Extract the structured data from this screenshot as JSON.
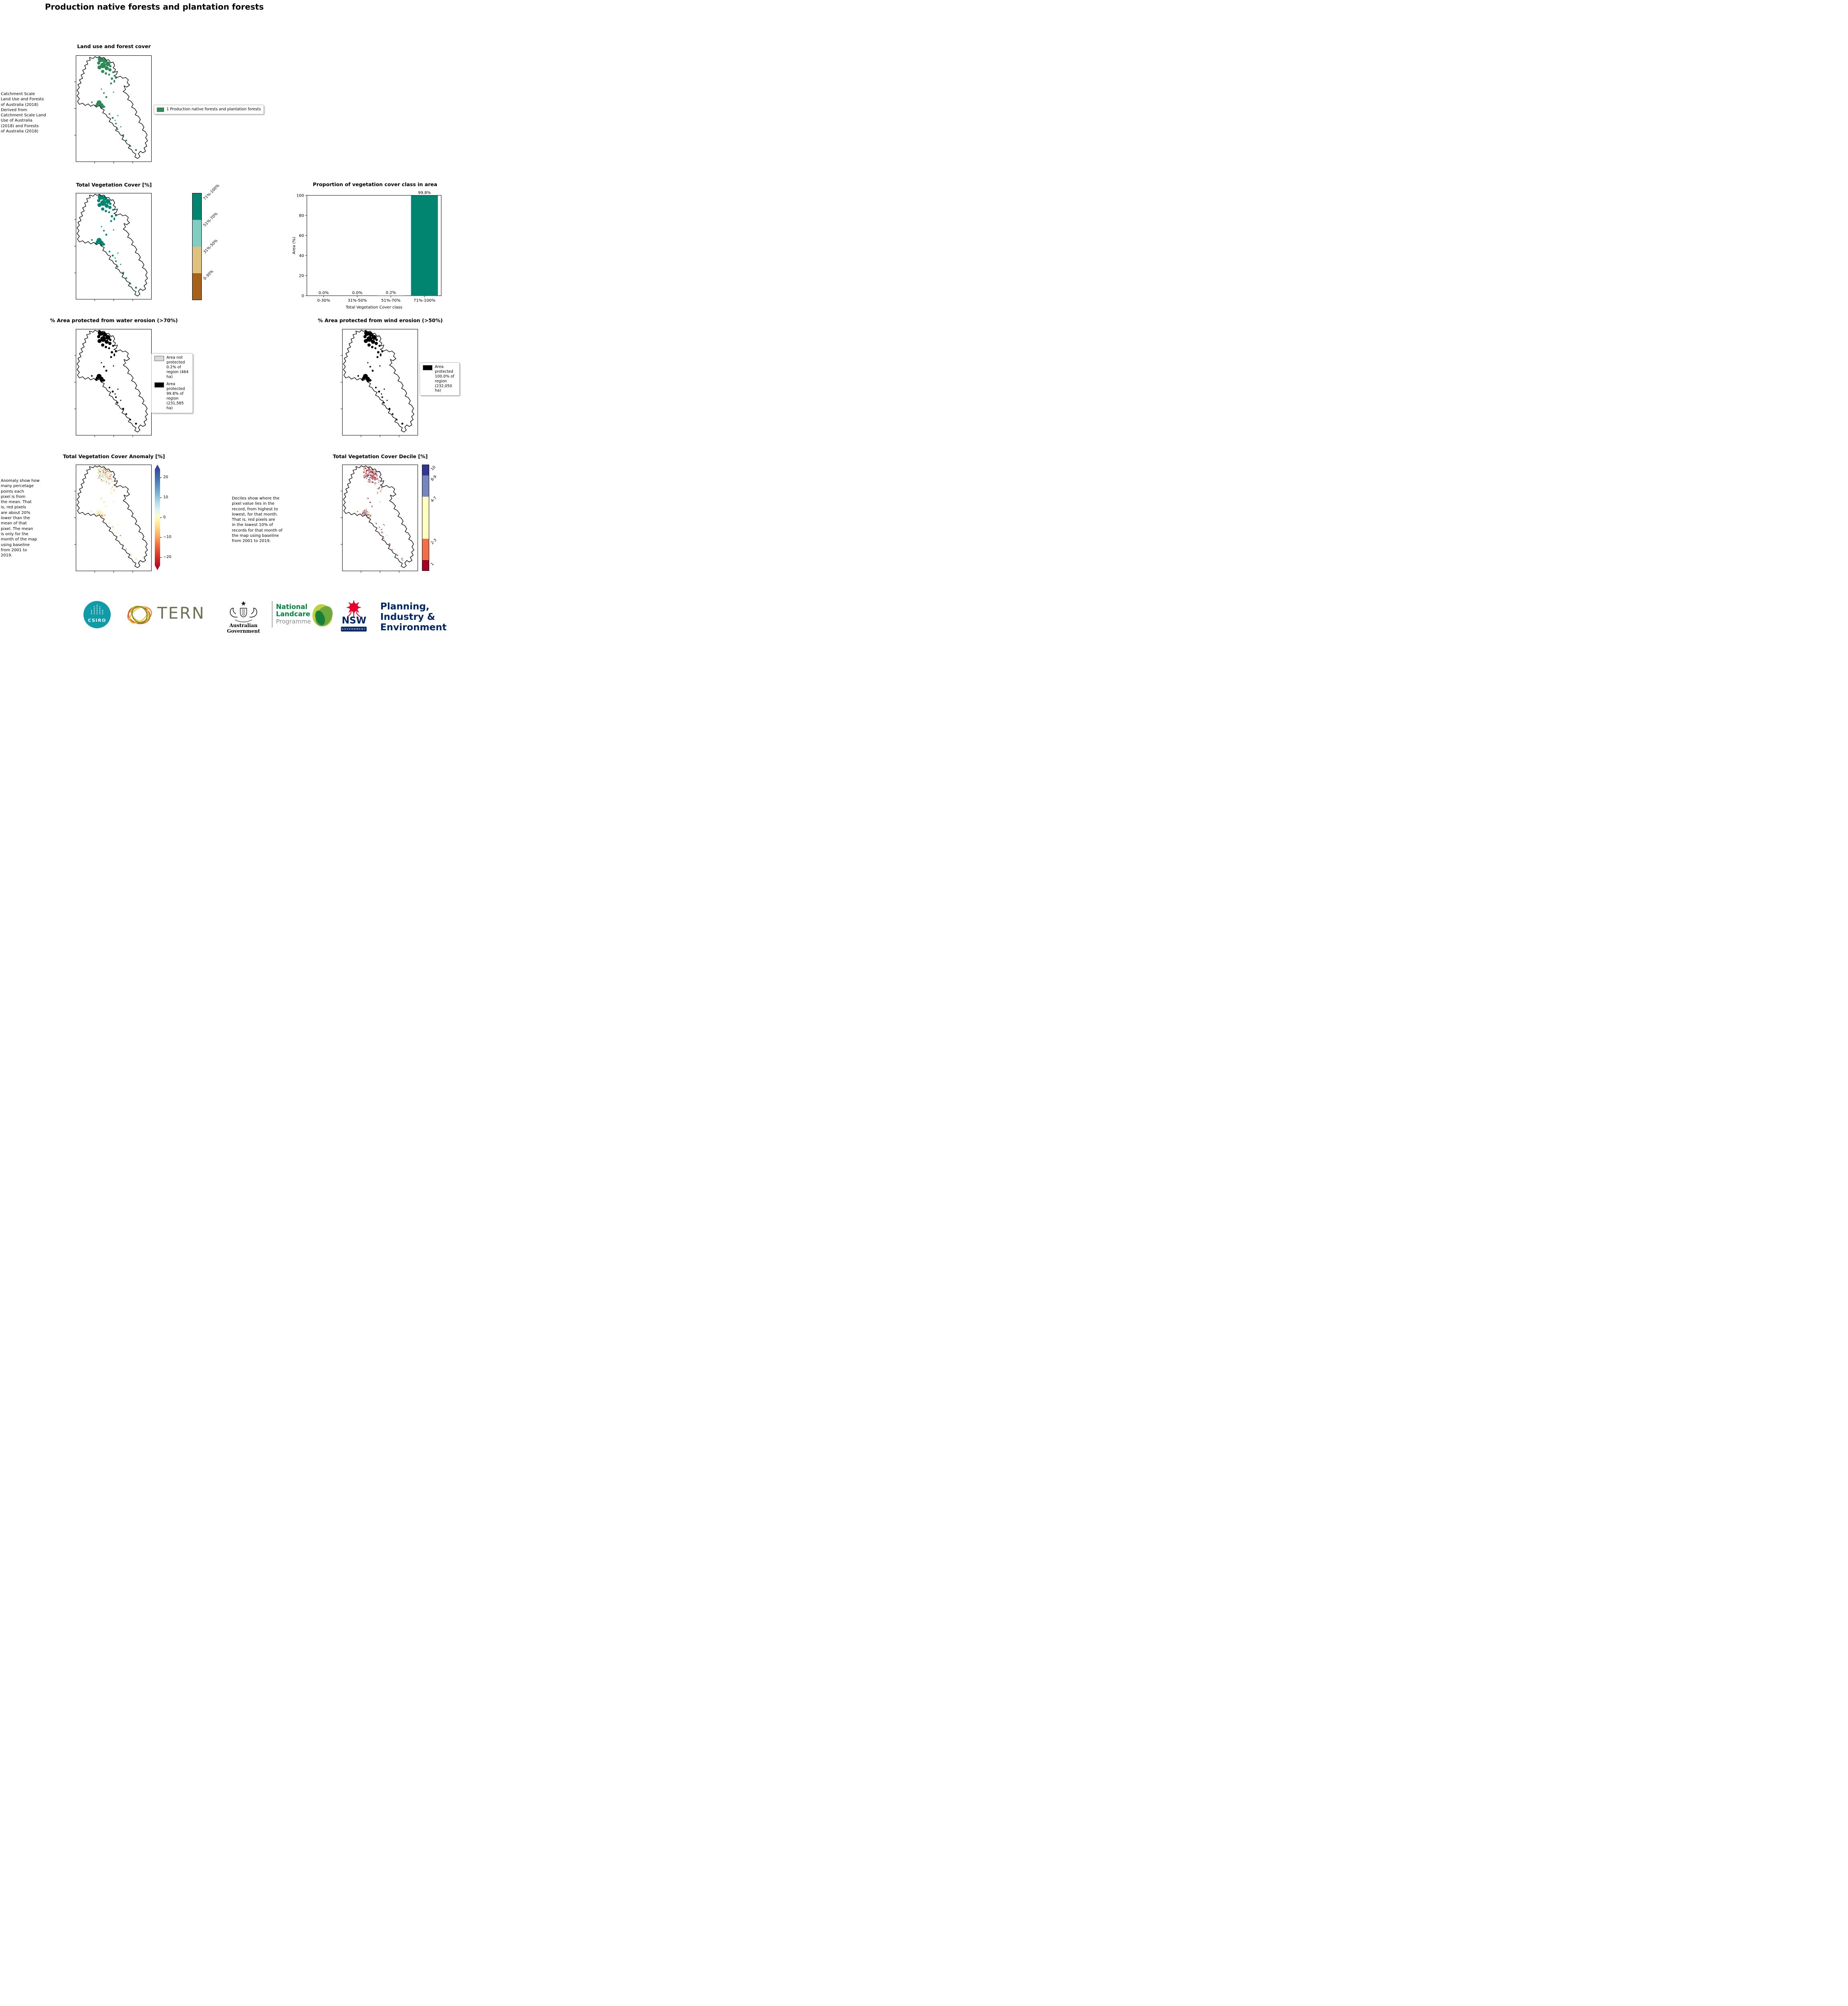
{
  "page": {
    "title": "Production native forests and plantation forests"
  },
  "colors": {
    "forest_green": "#2e8b57",
    "accent_teal": "#018571",
    "protected_black": "#000000",
    "not_protected_gray": "#d9d9d9",
    "csiro_teal": "#0f9ba8",
    "landcare_green": "#00843d",
    "nsw_navy": "#002664",
    "nsw_red": "#e4002b"
  },
  "panels": {
    "landuse": {
      "title": "Land use and forest cover",
      "side_note": " Catchment Scale\nLand Use and Forests\nof Australia (2018)\nDerived from\nCatchment Scale Land\nUse of Australia\n(2018) and Forests\nof Australia (2018)",
      "legend_items": [
        {
          "label": "1 Production native forests and plantation forests",
          "color": "#2e8b57"
        }
      ]
    },
    "tvc": {
      "title": "Total Vegetation Cover [%]",
      "colorbar_segments": [
        {
          "label": "71%-100%",
          "color": "#018571"
        },
        {
          "label": "51%-70%",
          "color": "#80cdc1"
        },
        {
          "label": "31%-50%",
          "color": "#dfc27d"
        },
        {
          "label": "0-30%",
          "color": "#a6611a"
        }
      ]
    },
    "water": {
      "title": "% Area protected from water erosion (>70%)",
      "legend_items": [
        {
          "label": "Area not protected 0.2% of region (464 ha)",
          "color": "#d9d9d9"
        },
        {
          "label": "Area protected 99.8% of region (231,585 ha)",
          "color": "#000000"
        }
      ]
    },
    "wind": {
      "title": "% Area protected from wind erosion (>50%)",
      "legend_items": [
        {
          "label": "Area protected 100.0% of region (232,050 ha)",
          "color": "#000000"
        }
      ]
    },
    "anomaly": {
      "title": "Total Vegetation Cover Anomaly [%]",
      "side_note": "Anomaly show how\nmany percetage\npoints each\npixel is from\nthe mean. That\nis, red pixels\nare about 20%\nlower than the\nmean of that\npixel. The mean\nis only for the\nmonth of the map\nusing baseline\nfrom 2001 to\n2019.",
      "colorbar_ticks": [
        "20",
        "10",
        "0",
        "−10",
        "−20"
      ]
    },
    "decile": {
      "title": "Total Vegetation Cover Decile [%]",
      "note": "Deciles show where the\npixel value lies in the\nrecord, from highest to\nlowest, for that month.\nThat is, red pixels are\nin the lowest 10% of\nrecords for that month of\nthe map using baseline\nfrom 2001 to 2019.",
      "colorbar_segments": [
        {
          "label": "10",
          "color": "#313695",
          "span": 1
        },
        {
          "label": "8-9",
          "color": "#7485c0",
          "span": 2
        },
        {
          "label": "4-7",
          "color": "#ffffbf",
          "span": 4
        },
        {
          "label": "2-3",
          "color": "#f46d43",
          "span": 2
        },
        {
          "label": "1",
          "color": "#a50026",
          "span": 1
        }
      ]
    }
  },
  "chart_data": {
    "type": "bar",
    "title": "Proportion of vegetation cover class in area",
    "categories": [
      "0-30%",
      "31%-50%",
      "51%-70%",
      "71%-100%"
    ],
    "values": [
      0.0,
      0.0,
      0.2,
      99.8
    ],
    "bar_labels": [
      "0.0%",
      "0.0%",
      "0.2%",
      "99.8%"
    ],
    "xlabel": "Total Vegetation Cover class",
    "ylabel": "Area (%)",
    "ylim": [
      0,
      100
    ],
    "yticks": [
      0,
      20,
      40,
      60,
      80,
      100
    ],
    "bar_color": "#018571",
    "grid": false,
    "legend": "none"
  },
  "footer": {
    "csiro": {
      "label": "CSIRO"
    },
    "tern": {
      "label": "TERN"
    },
    "aus_gov": {
      "label": "Australian Government"
    },
    "landcare": {
      "line1": "National",
      "line2": "Landcare",
      "line3": "Programme"
    },
    "nsw": {
      "label": "NSW",
      "sublabel": "GOVERNMENT"
    },
    "planning": {
      "line1": "Planning,",
      "line2": "Industry &",
      "line3": "Environment"
    }
  }
}
